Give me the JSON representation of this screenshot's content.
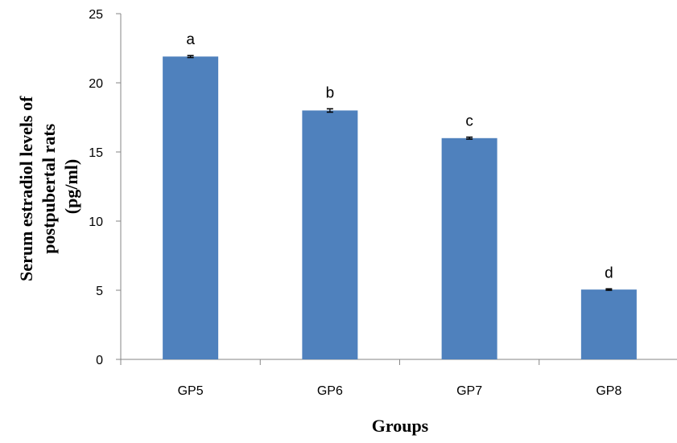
{
  "chart_data": {
    "type": "bar",
    "categories": [
      "GP5",
      "GP6",
      "GP7",
      "GP8"
    ],
    "values": [
      21.9,
      18.0,
      16.0,
      5.05
    ],
    "errors": [
      0.07,
      0.12,
      0.07,
      0.05
    ],
    "data_labels": [
      "a",
      "b",
      "c",
      "d"
    ],
    "xlabel": "Groups",
    "ylabel_lines": [
      "Serum estradiol levels of",
      "postpubertal rats",
      "(pg/ml)"
    ],
    "ylim": [
      0,
      25
    ],
    "yticks": [
      "0",
      "5",
      "10",
      "15",
      "20",
      "25"
    ],
    "bar_color": "#4F81BD",
    "grid": false,
    "legend": "none"
  }
}
